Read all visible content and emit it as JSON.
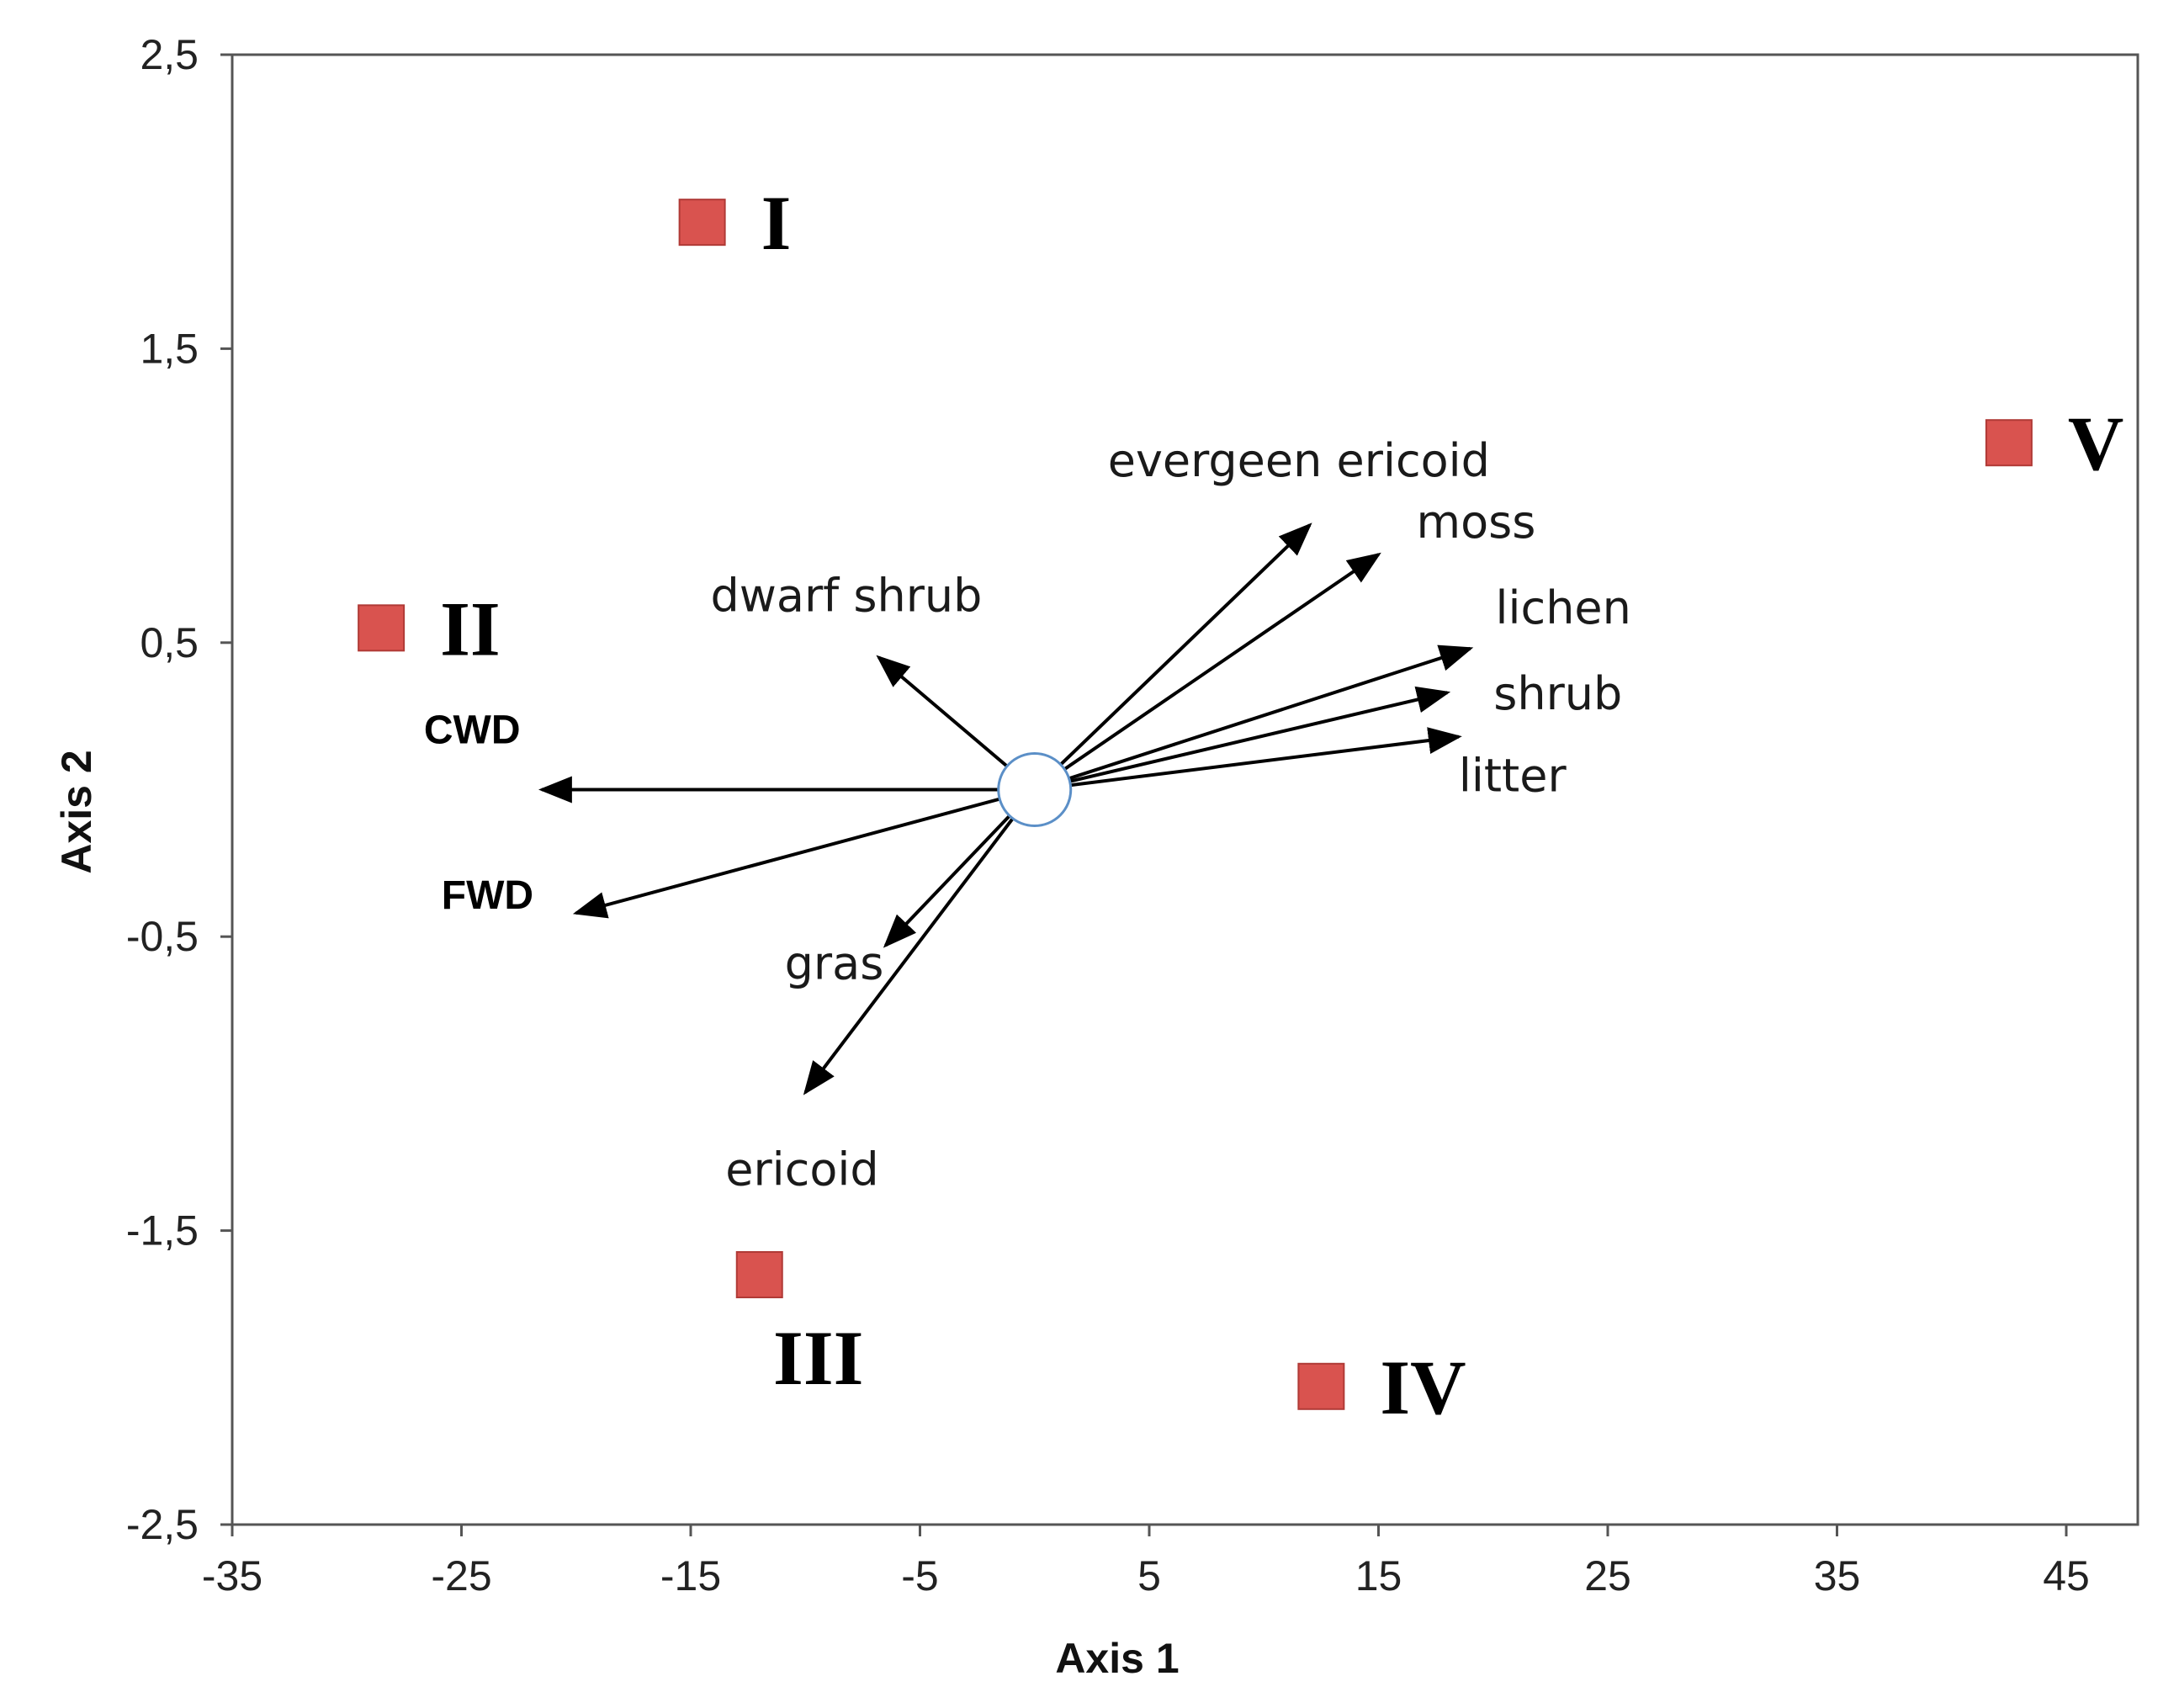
{
  "chart_data": {
    "type": "scatter",
    "title": "",
    "xlabel": "Axis 1",
    "ylabel": "Axis 2",
    "xlim": [
      -35,
      48
    ],
    "ylim": [
      -2.5,
      2.5
    ],
    "xticks": [
      -35,
      -25,
      -15,
      -5,
      5,
      15,
      25,
      35,
      45
    ],
    "yticks": [
      2.5,
      1.5,
      0.5,
      -0.5,
      -1.5,
      -2.5
    ],
    "xtick_labels": [
      "-35",
      "-25",
      "-15",
      "-5",
      "5",
      "15",
      "25",
      "35",
      "45"
    ],
    "ytick_labels": [
      "2,5",
      "1,5",
      "0,5",
      "-0,5",
      "-1,5",
      "-2,5"
    ],
    "grid": false,
    "colors": {
      "site_marker": "#d9534f",
      "vector": "#000000",
      "origin_stroke": "#5b8fc7"
    },
    "origin": {
      "x": 0,
      "y": 0
    },
    "sites": [
      {
        "label": "I",
        "x": -14.5,
        "y": 1.93
      },
      {
        "label": "II",
        "x": -28.5,
        "y": 0.55
      },
      {
        "label": "III",
        "x": -12,
        "y": -1.65
      },
      {
        "label": "IV",
        "x": 12.5,
        "y": -2.03
      },
      {
        "label": "V",
        "x": 42.5,
        "y": 1.18
      }
    ],
    "vectors": [
      {
        "label": "evergeen ericoid",
        "x": 12,
        "y": 0.9,
        "bold": false
      },
      {
        "label": "moss",
        "x": 15,
        "y": 0.8,
        "bold": false
      },
      {
        "label": "lichen",
        "x": 19,
        "y": 0.48,
        "bold": false
      },
      {
        "label": "shrub",
        "x": 18,
        "y": 0.33,
        "bold": false
      },
      {
        "label": "litter",
        "x": 18.5,
        "y": 0.18,
        "bold": false
      },
      {
        "label": "dwarf shrub",
        "x": -6.8,
        "y": 0.45,
        "bold": false
      },
      {
        "label": "CWD",
        "x": -21.5,
        "y": 0,
        "bold": true
      },
      {
        "label": "FWD",
        "x": -20,
        "y": -0.42,
        "bold": true
      },
      {
        "label": "gras",
        "x": -6.5,
        "y": -0.53,
        "bold": false
      },
      {
        "label": "ericoid",
        "x": -10,
        "y": -1.03,
        "bold": false
      }
    ]
  }
}
